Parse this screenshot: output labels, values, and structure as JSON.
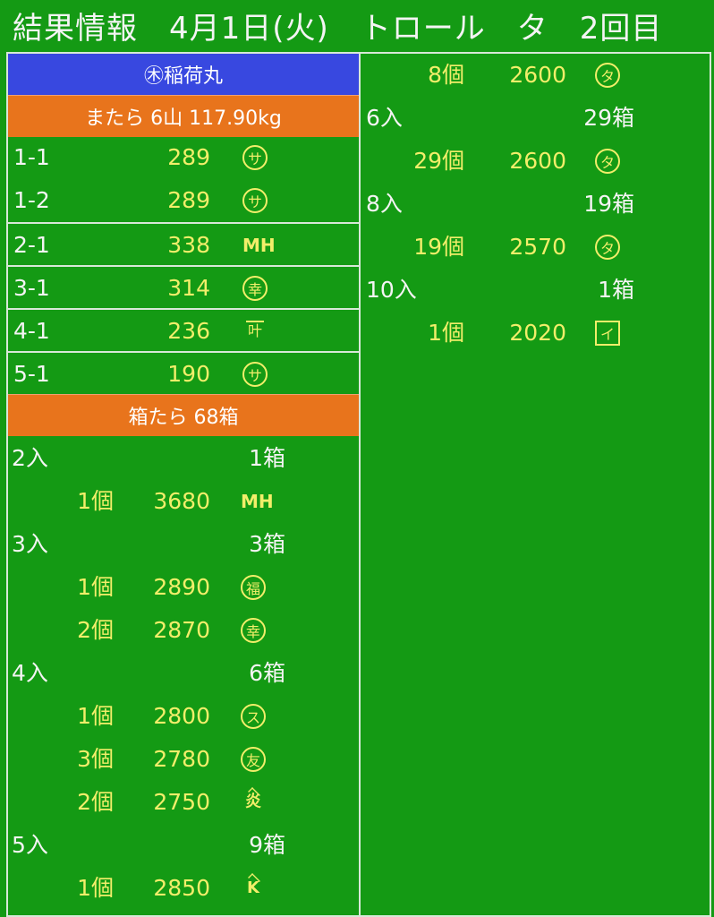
{
  "header": {
    "title": "結果情報　4月1日(火)　トロール　タ　2回目"
  },
  "vessel": {
    "name": "㊍稲荷丸"
  },
  "mata": {
    "summary": "またら 6山 117.90kg",
    "rows": [
      {
        "id": "1-1",
        "weight": "289",
        "mark": "サ",
        "mark_style": "circle"
      },
      {
        "id": "1-2",
        "weight": "289",
        "mark": "サ",
        "mark_style": "circle"
      },
      {
        "id": "2-1",
        "weight": "338",
        "mark": "MH",
        "mark_style": "plain"
      },
      {
        "id": "3-1",
        "weight": "314",
        "mark": "幸",
        "mark_style": "circle"
      },
      {
        "id": "4-1",
        "weight": "236",
        "mark": "叶",
        "mark_style": "bar"
      },
      {
        "id": "5-1",
        "weight": "190",
        "mark": "サ",
        "mark_style": "circle"
      }
    ]
  },
  "hako": {
    "summary": "箱たら 68箱",
    "groups": [
      {
        "label": "2入",
        "boxes": "1箱",
        "items": [
          {
            "count": "1個",
            "price": "3680",
            "mark": "MH",
            "mark_style": "plain"
          }
        ]
      },
      {
        "label": "3入",
        "boxes": "3箱",
        "items": [
          {
            "count": "1個",
            "price": "2890",
            "mark": "福",
            "mark_style": "circle"
          },
          {
            "count": "2個",
            "price": "2870",
            "mark": "幸",
            "mark_style": "circle"
          }
        ]
      },
      {
        "label": "4入",
        "boxes": "6箱",
        "items": [
          {
            "count": "1個",
            "price": "2800",
            "mark": "ス",
            "mark_style": "circle"
          },
          {
            "count": "3個",
            "price": "2780",
            "mark": "友",
            "mark_style": "circle"
          },
          {
            "count": "2個",
            "price": "2750",
            "mark": "炎",
            "mark_style": "roof"
          }
        ]
      },
      {
        "label": "5入",
        "boxes": "9箱",
        "items": [
          {
            "count": "1個",
            "price": "2850",
            "mark": "K",
            "mark_style": "roof"
          }
        ]
      }
    ],
    "continued": [
      {
        "count": "8個",
        "price": "2600",
        "mark": "タ",
        "mark_style": "circle"
      },
      {
        "label": "6入",
        "boxes": "29箱"
      },
      {
        "count": "29個",
        "price": "2600",
        "mark": "タ",
        "mark_style": "circle"
      },
      {
        "label": "8入",
        "boxes": "19箱"
      },
      {
        "count": "19個",
        "price": "2570",
        "mark": "タ",
        "mark_style": "circle"
      },
      {
        "label": "10入",
        "boxes": "1箱"
      },
      {
        "count": "1個",
        "price": "2020",
        "mark": "イ",
        "mark_style": "square"
      }
    ]
  },
  "colors": {
    "background": "#149a14",
    "vessel_band": "#3848e0",
    "summary_band": "#e8741c",
    "value_text": "#f2ee6a",
    "label_text": "#f4f4f4"
  }
}
